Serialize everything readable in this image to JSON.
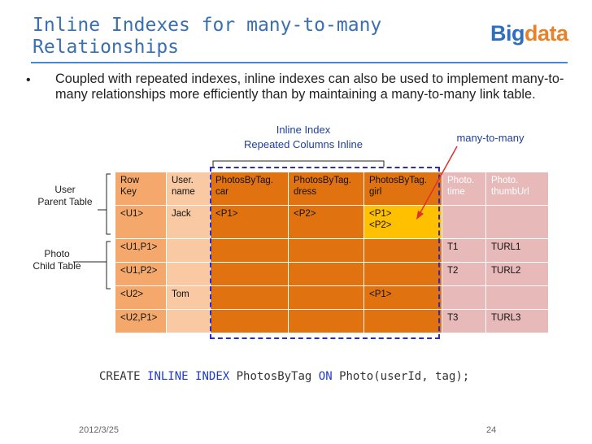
{
  "title": "Inline Indexes for many-to-many Relationships",
  "logo": {
    "part1": "Big",
    "part2": "data"
  },
  "bullet": "Coupled with repeated indexes, inline indexes can also be used to implement many-to-many relationships more efficiently than by maintaining a many-to-many link table.",
  "annotations": {
    "inline_index_line1": "Inline Index",
    "inline_index_line2": "Repeated Columns Inline",
    "many_to_many": "many-to-many"
  },
  "side_labels": {
    "user_line1": "User",
    "user_line2": "Parent Table",
    "photo_line1": "Photo",
    "photo_line2": "Child Table"
  },
  "table": {
    "headers": [
      [
        "Row",
        "Key"
      ],
      [
        "User.",
        "name"
      ],
      [
        "PhotosByTag.",
        "car"
      ],
      [
        "PhotosByTag.",
        "dress"
      ],
      [
        "PhotosByTag.",
        "girl"
      ],
      [
        "Photo.",
        "time"
      ],
      [
        "Photo.",
        "thumbUrl"
      ]
    ],
    "rows": [
      {
        "key": "<U1>",
        "name": "Jack",
        "car": "<P1>",
        "dress": "<P2>",
        "girl1": "<P1>",
        "girl2": "<P2>",
        "time": "",
        "thumb": ""
      },
      {
        "key": "<U1,P1>",
        "name": "",
        "car": "",
        "dress": "",
        "girl1": "",
        "girl2": "",
        "time": "T1",
        "thumb": "TURL1"
      },
      {
        "key": "<U1,P2>",
        "name": "",
        "car": "",
        "dress": "",
        "girl1": "",
        "girl2": "",
        "time": "T2",
        "thumb": "TURL2"
      },
      {
        "key": "<U2>",
        "name": "Tom",
        "car": "",
        "dress": "",
        "girl1": "<P1>",
        "girl2": "",
        "time": "",
        "thumb": ""
      },
      {
        "key": "<U2,P1>",
        "name": "",
        "car": "",
        "dress": "",
        "girl1": "",
        "girl2": "",
        "time": "T3",
        "thumb": "TURL3"
      }
    ]
  },
  "sql": {
    "create": "CREATE",
    "inline": "INLINE",
    "index": "INDEX",
    "name": "PhotosByTag",
    "on": "ON",
    "target": "Photo(userId, tag);"
  },
  "footer": {
    "date": "2012/3/25",
    "page": "24"
  },
  "colors": {
    "title": "#3a6fb0",
    "key_col": "#f4a86c",
    "user_col": "#f9c9a3",
    "tag_col": "#e0720f",
    "highlight": "#ffc000",
    "photo_col": "#e7b9b9",
    "dashed_box": "#2a2ad0",
    "arrow": "#e0302a"
  }
}
